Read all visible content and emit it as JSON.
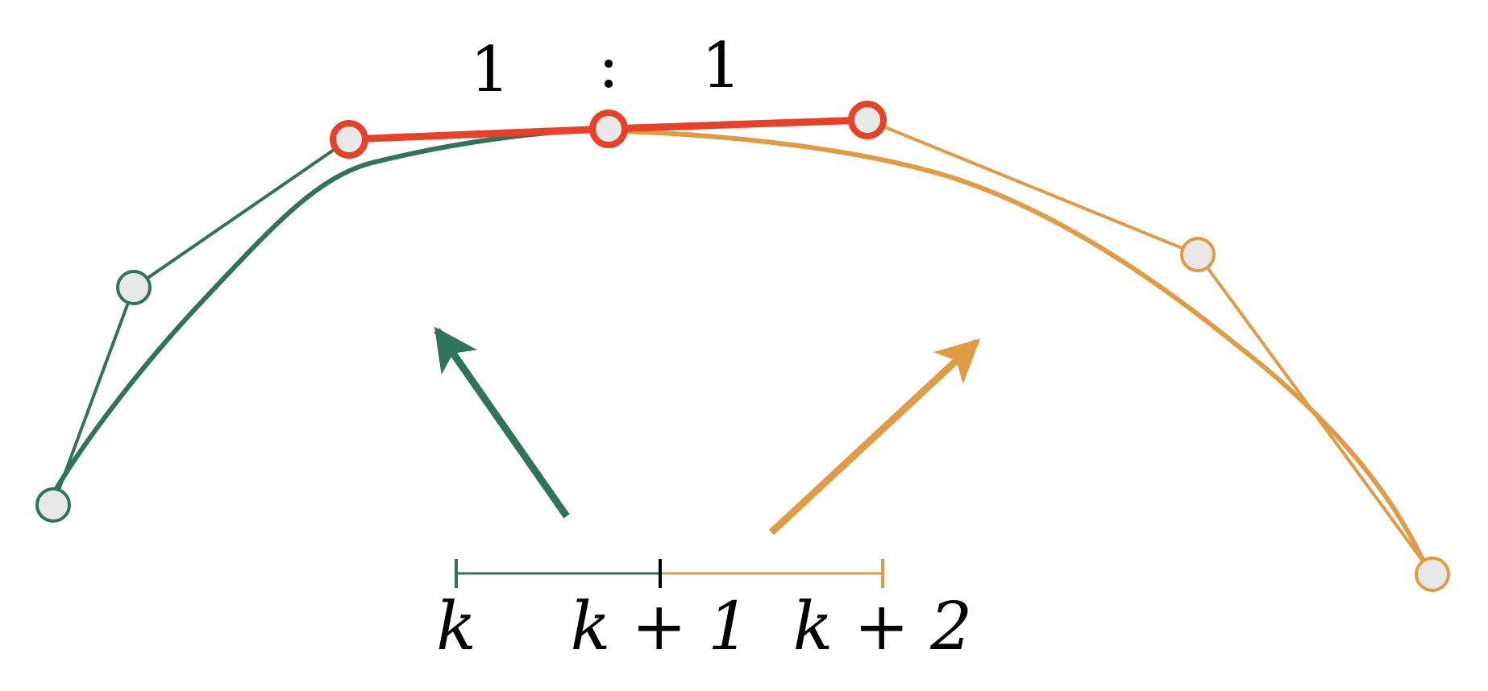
{
  "colors": {
    "green": "#2F7458",
    "orange": "#E09B45",
    "red": "#E74228",
    "node_fill": "#E8E8E8",
    "black": "#000000"
  },
  "ratio": {
    "left": "1",
    "separator": ":",
    "right": "1"
  },
  "axis": {
    "label_k": "k",
    "label_k1": "k + 1",
    "label_k2": "k + 2"
  }
}
